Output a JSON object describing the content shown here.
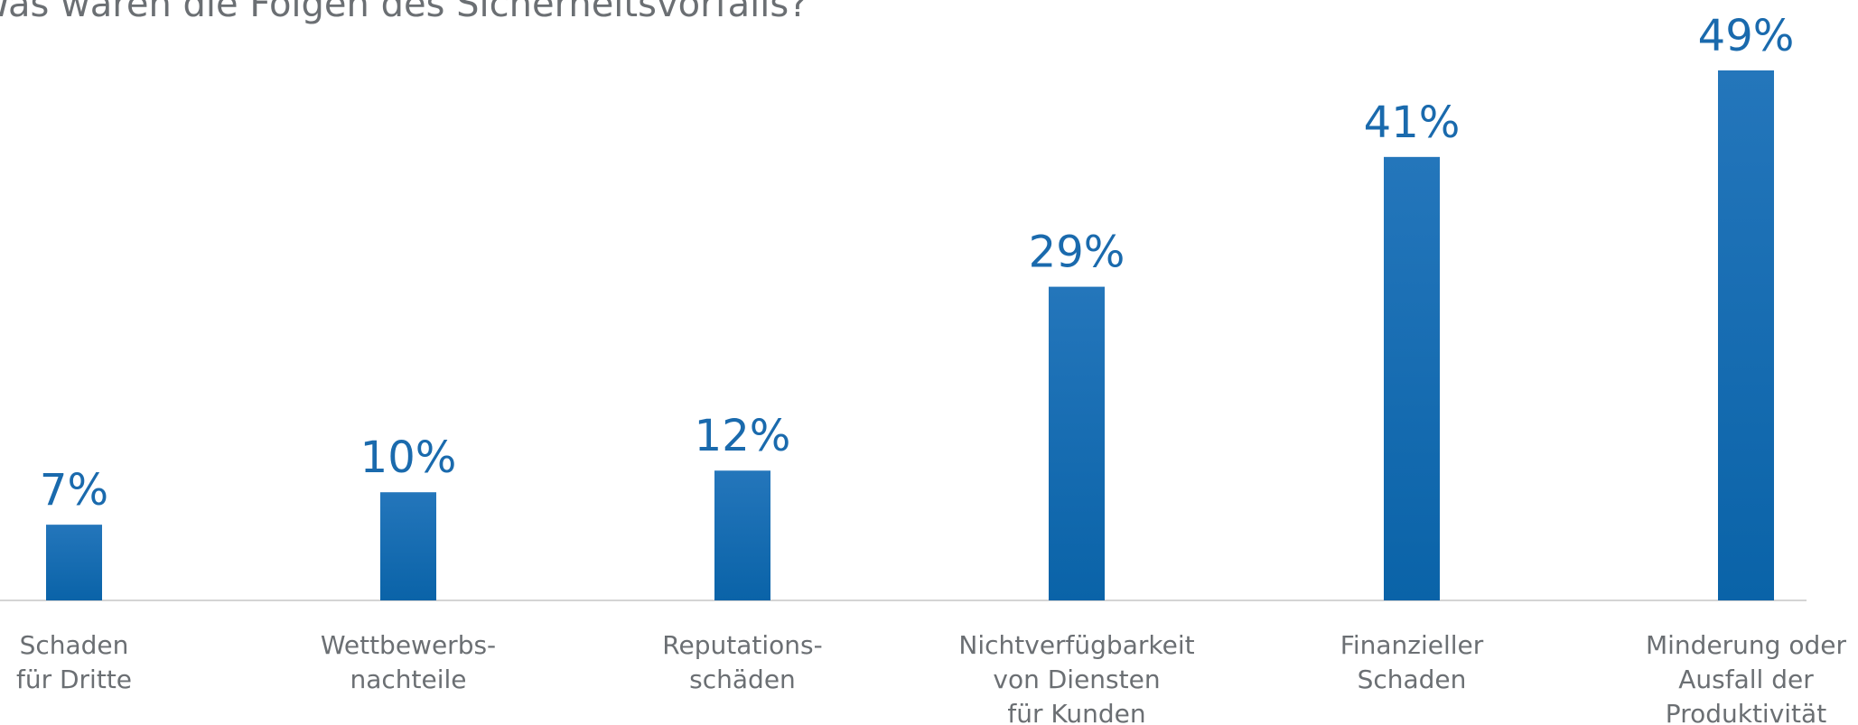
{
  "chart_data": {
    "type": "bar",
    "title": "Was waren die Folgen des Sicherheitsvorfalls?",
    "xlabel": "",
    "ylabel": "",
    "ylim": [
      0,
      49
    ],
    "grid": false,
    "categories": [
      [
        "Schaden",
        "für Dritte"
      ],
      [
        "Wettbewerbs-",
        "nachteile"
      ],
      [
        "Reputations-",
        "schäden"
      ],
      [
        "Nichtverfügbarkeit",
        "von Diensten",
        "für Kunden"
      ],
      [
        "Finanzieller",
        "Schaden"
      ],
      [
        "Minderung oder",
        "Ausfall der",
        "Produktivität"
      ]
    ],
    "values": [
      7,
      10,
      12,
      29,
      41,
      49
    ],
    "data_labels": [
      "7%",
      "10%",
      "12%",
      "29%",
      "41%",
      "49%"
    ],
    "colors": {
      "bar_top": "#2476bb",
      "bar_bottom": "#0a63a8",
      "label": "#1a6aad",
      "text": "#6b6f73",
      "baseline": "#d4d4d4"
    }
  }
}
